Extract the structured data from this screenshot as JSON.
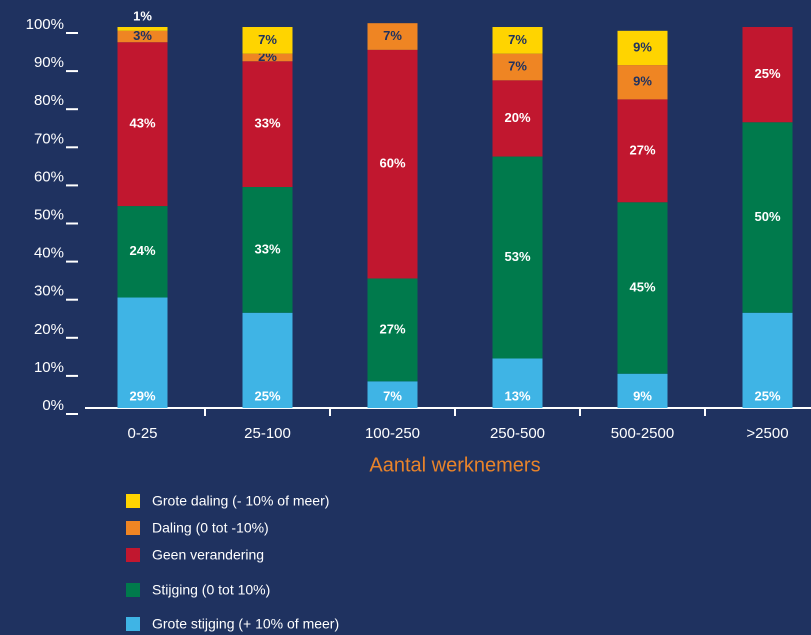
{
  "chart_data": {
    "type": "stacked_bar",
    "categories": [
      "0-25",
      "25-100",
      "100-250",
      "250-500",
      "500-2500",
      ">2500"
    ],
    "series": [
      {
        "name": "Grote stijging (+ 10% of meer)",
        "color": "#3fb4e5",
        "values": [
          29,
          25,
          7,
          13,
          9,
          25
        ],
        "value_labels": [
          "29%",
          "25%",
          "7%",
          "13%",
          "9%",
          "25%"
        ]
      },
      {
        "name": "Stijging (0 tot 10%)",
        "color": "#007a4c",
        "values": [
          24,
          33,
          27,
          53,
          45,
          50
        ],
        "value_labels": [
          "24%",
          "33%",
          "27%",
          "53%",
          "45%",
          "50%"
        ]
      },
      {
        "name": "Geen verandering",
        "color": "#c1172f",
        "values": [
          43,
          33,
          60,
          20,
          27,
          25
        ],
        "value_labels": [
          "43%",
          "33%",
          "60%",
          "20%",
          "27%",
          "25%"
        ]
      },
      {
        "name": "Daling (0 tot -10%)",
        "color": "#ef8523",
        "values": [
          3,
          2,
          7,
          7,
          9,
          null
        ],
        "value_labels": [
          "3%",
          "2%",
          "7%",
          "7%",
          "9%",
          null
        ]
      },
      {
        "name": "Grote daling (- 10% of meer)",
        "color": "#ffd400",
        "values": [
          1,
          7,
          null,
          7,
          9,
          null
        ],
        "value_labels": [
          "1%",
          "7%",
          null,
          "7%",
          "9%",
          null
        ]
      }
    ],
    "x_label": "Aantal werknemers",
    "ylim": [
      0,
      100
    ],
    "yticks": [
      {
        "value": 0,
        "label": "0%"
      },
      {
        "value": 10,
        "label": "10%"
      },
      {
        "value": 20,
        "label": "20%"
      },
      {
        "value": 30,
        "label": "30%"
      },
      {
        "value": 40,
        "label": "40%"
      },
      {
        "value": 50,
        "label": "50%"
      },
      {
        "value": 60,
        "label": "60%"
      },
      {
        "value": 70,
        "label": "70%"
      },
      {
        "value": 80,
        "label": "80%"
      },
      {
        "value": 90,
        "label": "90%"
      },
      {
        "value": 100,
        "label": "100%"
      }
    ],
    "grid": false
  }
}
